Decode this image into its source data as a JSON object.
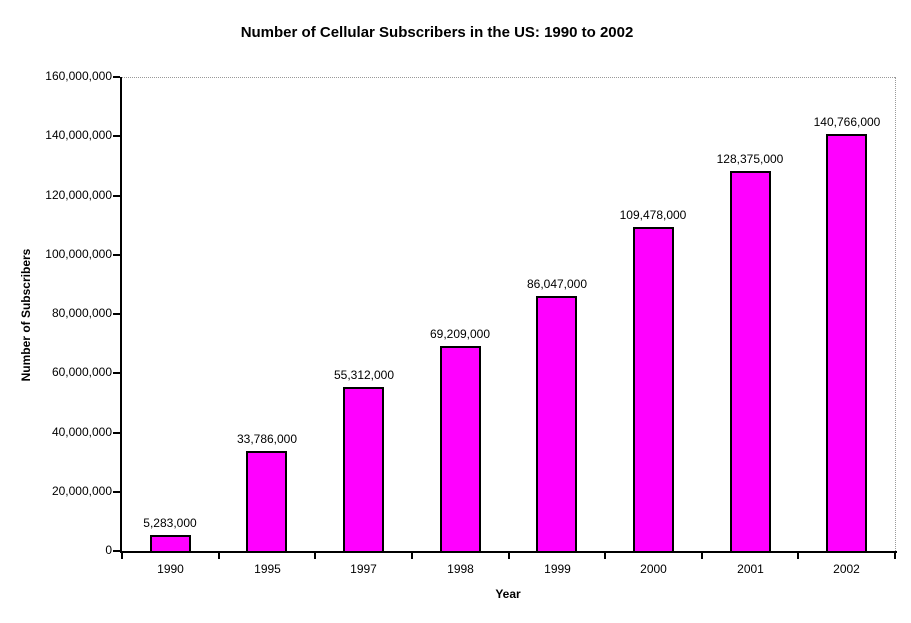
{
  "chart_data": {
    "type": "bar",
    "title": "Number of Cellular Subscribers in the US: 1990 to 2002",
    "xlabel": "Year",
    "ylabel": "Number of Subscribers",
    "categories": [
      "1990",
      "1995",
      "1997",
      "1998",
      "1999",
      "2000",
      "2001",
      "2002"
    ],
    "values": [
      5283000,
      33786000,
      55312000,
      69209000,
      86047000,
      109478000,
      128375000,
      140766000
    ],
    "data_labels": [
      "5,283,000",
      "33,786,000",
      "55,312,000",
      "69,209,000",
      "86,047,000",
      "109,478,000",
      "128,375,000",
      "140,766,000"
    ],
    "ylim": [
      0,
      160000000
    ],
    "ytick_step": 20000000,
    "ytick_labels": [
      "0",
      "20,000,000",
      "40,000,000",
      "60,000,000",
      "80,000,000",
      "100,000,000",
      "120,000,000",
      "140,000,000",
      "160,000,000"
    ],
    "bar_color": "#FF00FF",
    "bar_border_color": "#000000",
    "axis_color": "#000000",
    "plot_border_color": "#999999",
    "background_color": "#FFFFFF",
    "grid": false,
    "legend": "none"
  }
}
